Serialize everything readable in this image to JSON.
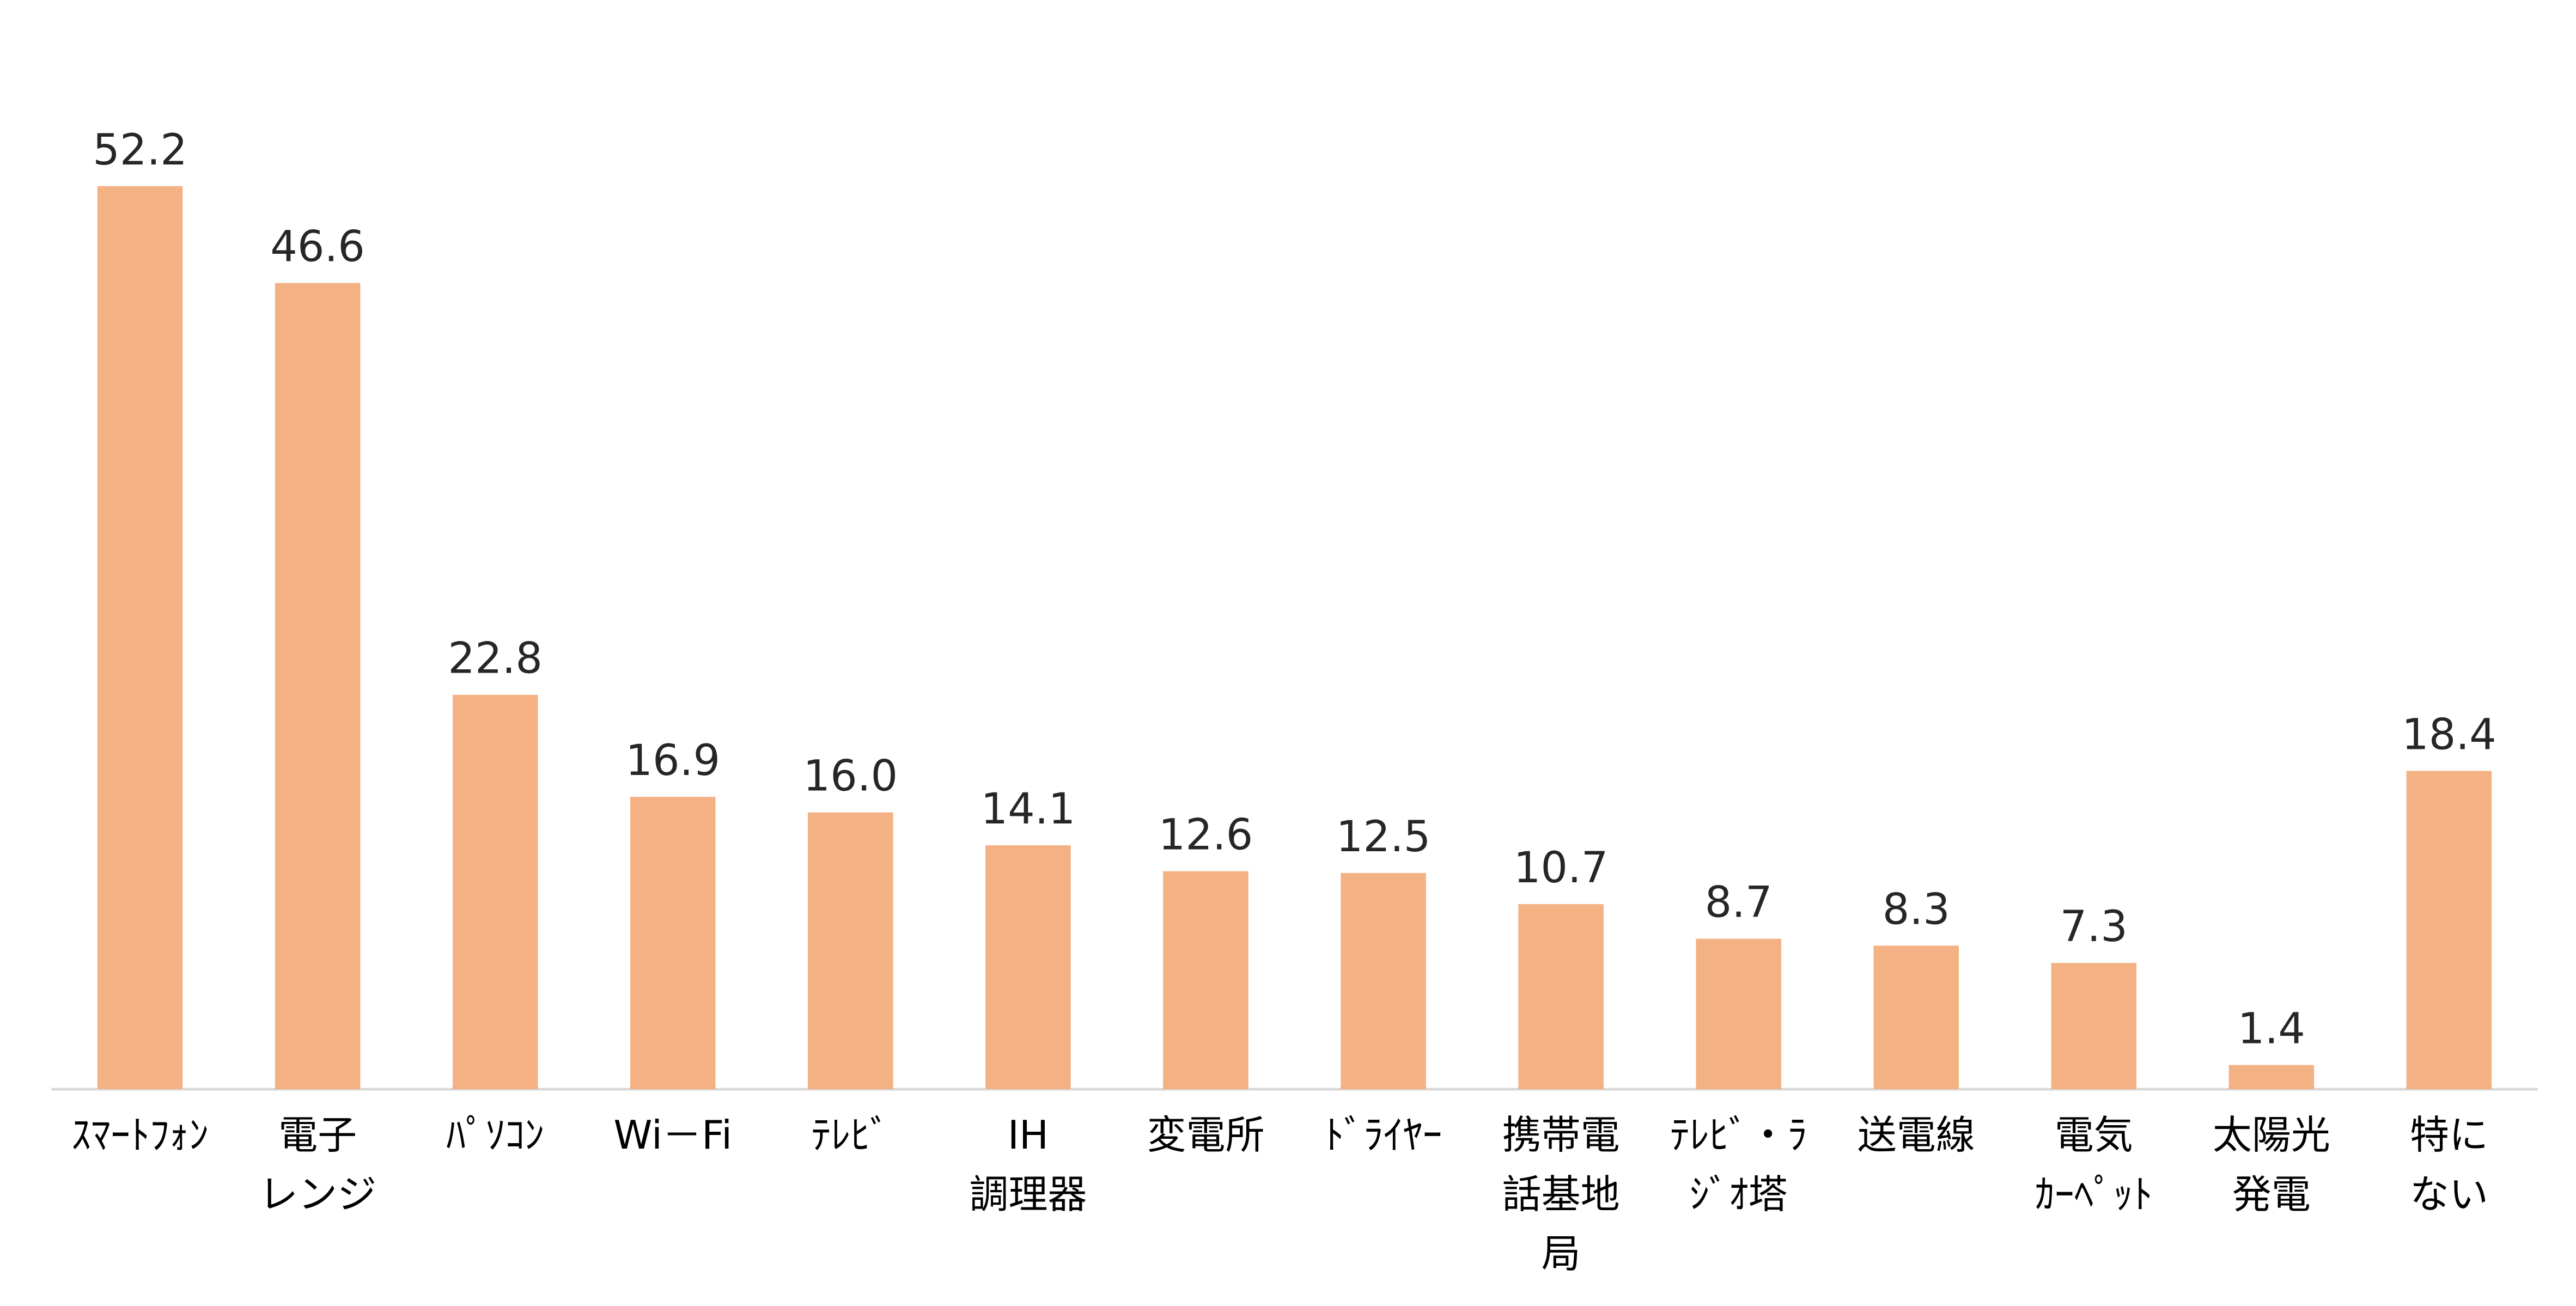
{
  "chart_data": {
    "type": "bar",
    "categories": [
      "ｽﾏｰﾄﾌｫﾝ",
      "電子\nレンジ",
      "ﾊﾟｿｺﾝ",
      "Wi－Fi",
      "ﾃﾚﾋﾞ",
      "IH\n調理器",
      "変電所",
      "ﾄﾞﾗｲﾔｰ",
      "携帯電\n話基地\n局",
      "ﾃﾚﾋﾞ・ﾗ\nｼﾞｵ塔",
      "送電線",
      "電気\nｶｰﾍﾟｯﾄ",
      "太陽光\n発電",
      "特に\nない"
    ],
    "values": [
      52.2,
      46.6,
      22.8,
      16.9,
      16.0,
      14.1,
      12.6,
      12.5,
      10.7,
      8.7,
      8.3,
      7.3,
      1.4,
      18.4
    ],
    "value_labels": [
      "52.2",
      "46.6",
      "22.8",
      "16.9",
      "16.0",
      "14.1",
      "12.6",
      "12.5",
      "10.7",
      "8.7",
      "8.3",
      "7.3",
      "1.4",
      "18.4"
    ],
    "color": "#F4B183",
    "ylim": [
      0,
      60
    ]
  }
}
